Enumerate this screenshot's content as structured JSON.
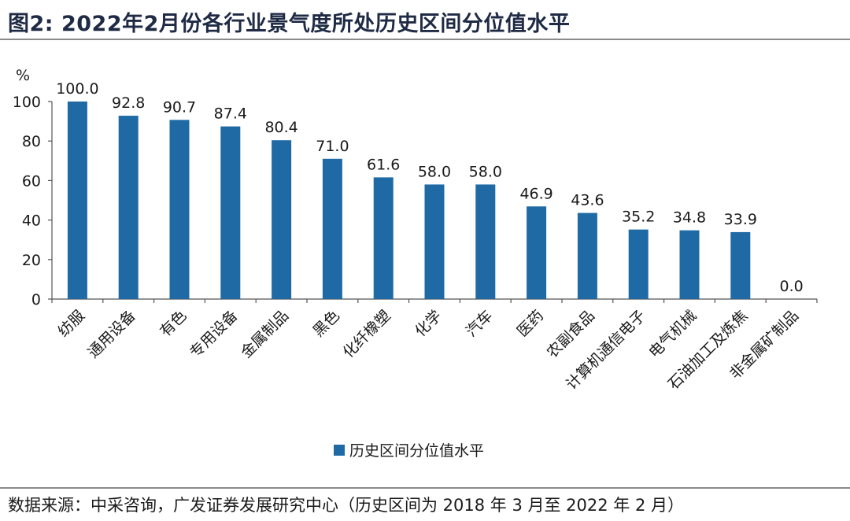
{
  "figure": {
    "title": "图2:  2022年2月份各行业景气度所处历史区间分位值水平",
    "source": "数据来源：中采咨询，广发证券发展研究中心（历史区间为 2018 年 3 月至 2022 年 2 月）"
  },
  "chart_data": {
    "type": "bar",
    "title": "",
    "xlabel": "",
    "ylabel": "%",
    "ylim": [
      0,
      100
    ],
    "yticks": [
      0,
      20,
      40,
      60,
      80,
      100
    ],
    "grid": false,
    "legend_position": "bottom",
    "bar_color": "#1f6aa5",
    "categories": [
      "纺服",
      "通用设备",
      "有色",
      "专用设备",
      "金属制品",
      "黑色",
      "化纤橡塑",
      "化学",
      "汽车",
      "医药",
      "农副食品",
      "计算机通信电子",
      "电气机械",
      "石油加工及炼焦",
      "非金属矿制品"
    ],
    "series": [
      {
        "name": "历史区间分位值水平",
        "values": [
          100.0,
          92.8,
          90.7,
          87.4,
          80.4,
          71.0,
          61.6,
          58.0,
          58.0,
          46.9,
          43.6,
          35.2,
          34.8,
          33.9,
          0.0
        ],
        "value_labels": [
          "100.0",
          "92.8",
          "90.7",
          "87.4",
          "80.4",
          "71.0",
          "61.6",
          "58.0",
          "58.0",
          "46.9",
          "43.6",
          "35.2",
          "34.8",
          "33.9",
          "0.0"
        ]
      }
    ]
  }
}
